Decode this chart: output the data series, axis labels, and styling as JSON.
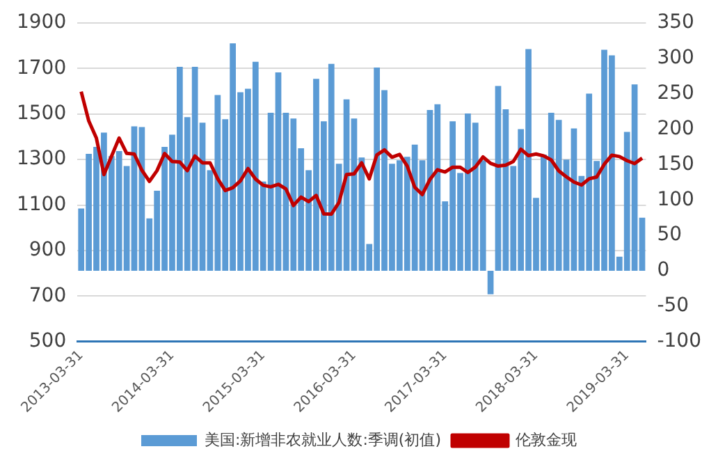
{
  "chart_data": {
    "type": "bar",
    "categories": [
      "2013-03-31",
      null,
      null,
      null,
      null,
      null,
      null,
      null,
      null,
      null,
      null,
      null,
      "2014-03-31",
      null,
      null,
      null,
      null,
      null,
      null,
      null,
      null,
      null,
      null,
      null,
      "2015-03-31",
      null,
      null,
      null,
      null,
      null,
      null,
      null,
      null,
      null,
      null,
      null,
      "2016-03-31",
      null,
      null,
      null,
      null,
      null,
      null,
      null,
      null,
      null,
      null,
      null,
      "2017-03-31",
      null,
      null,
      null,
      null,
      null,
      null,
      null,
      null,
      null,
      null,
      null,
      "2018-03-31",
      null,
      null,
      null,
      null,
      null,
      null,
      null,
      null,
      null,
      null,
      null,
      "2019-03-31",
      null,
      null
    ],
    "series": [
      {
        "name": "美国:新增非农就业人数:季调(初值)",
        "axis": "y2",
        "color": "#5b9bd5",
        "values": [
          88,
          165,
          175,
          195,
          162,
          169,
          148,
          204,
          203,
          74,
          113,
          175,
          192,
          288,
          217,
          288,
          209,
          142,
          248,
          214,
          321,
          252,
          257,
          295,
          126,
          223,
          280,
          223,
          215,
          173,
          142,
          271,
          211,
          292,
          151,
          242,
          215,
          160,
          38,
          287,
          255,
          151,
          156,
          161,
          178,
          156,
          227,
          235,
          98,
          211,
          138,
          222,
          209,
          156,
          -33,
          261,
          228,
          148,
          200,
          313,
          103,
          164,
          223,
          213,
          157,
          201,
          134,
          250,
          155,
          312,
          304,
          20,
          196,
          263,
          75
        ]
      },
      {
        "name": "伦敦金现",
        "type": "line",
        "color": "#c00000",
        "values": [
          1598,
          1469,
          1394,
          1234,
          1314,
          1394,
          1327,
          1324,
          1253,
          1204,
          1251,
          1326,
          1291,
          1289,
          1251,
          1315,
          1285,
          1285,
          1216,
          1164,
          1176,
          1206,
          1260,
          1214,
          1187,
          1180,
          1191,
          1171,
          1098,
          1135,
          1115,
          1142,
          1061,
          1060,
          1111,
          1234,
          1237,
          1285,
          1215,
          1320,
          1342,
          1310,
          1322,
          1272,
          1178,
          1146,
          1212,
          1255,
          1245,
          1266,
          1266,
          1243,
          1267,
          1311,
          1283,
          1271,
          1275,
          1291,
          1345,
          1317,
          1324,
          1316,
          1298,
          1250,
          1224,
          1201,
          1188,
          1215,
          1223,
          1279,
          1319,
          1313,
          1295,
          1282,
          1306
        ]
      }
    ],
    "ylim": [
      500,
      1900
    ],
    "yticks": [
      500,
      700,
      900,
      1100,
      1300,
      1500,
      1700,
      1900
    ],
    "y2lim": [
      -100,
      350
    ],
    "y2ticks": [
      -100,
      -50,
      0,
      50,
      100,
      150,
      200,
      250,
      300,
      350
    ],
    "grid": "y",
    "legend": "bottom"
  }
}
